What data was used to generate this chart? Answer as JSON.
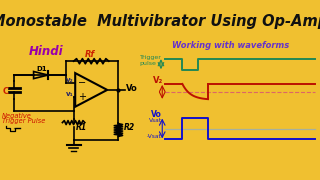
{
  "title": "Monostable  Multivibrator Using Op-Amp",
  "title_bg": "#F0C030",
  "title_color": "#111111",
  "hindi_label": "Hindi",
  "hindi_color": "#9900AA",
  "waveform_label": "Working with waveforms",
  "waveform_label_color": "#6633CC",
  "bg_color": "#F8F8F0",
  "trigger_color": "#228855",
  "v2_color": "#BB1100",
  "vo_color": "#1111CC",
  "rf_label": "Rf",
  "r2_label": "R2",
  "r1_label": "R1",
  "c_label": "C",
  "d1_label": "D1",
  "rf_color": "#CC2200",
  "neg_trigger_label": "Negative\nTrigger Pulse"
}
